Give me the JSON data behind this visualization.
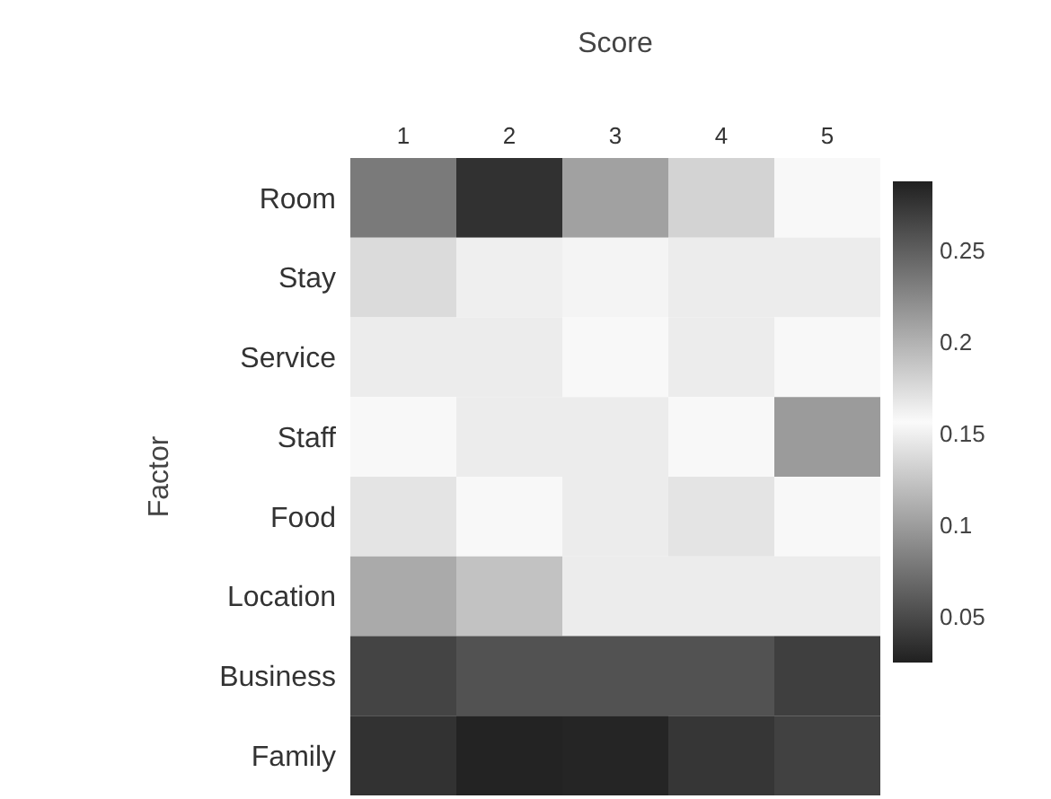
{
  "chart_data": {
    "type": "heatmap",
    "xlabel": "Score",
    "ylabel": "Factor",
    "categories": [
      "1",
      "2",
      "3",
      "4",
      "5"
    ],
    "y_categories": [
      "Room",
      "Stay",
      "Service",
      "Staff",
      "Food",
      "Location",
      "Business",
      "Family"
    ],
    "cells": [
      [
        0.234,
        0.278,
        0.21,
        0.18,
        0.155
      ],
      [
        0.175,
        0.15,
        0.153,
        0.165,
        0.165
      ],
      [
        0.165,
        0.165,
        0.155,
        0.165,
        0.155
      ],
      [
        0.155,
        0.165,
        0.165,
        0.155,
        0.214
      ],
      [
        0.17,
        0.155,
        0.165,
        0.17,
        0.155
      ],
      [
        0.205,
        0.19,
        0.165,
        0.165,
        0.165
      ],
      [
        0.047,
        0.055,
        0.055,
        0.055,
        0.044
      ],
      [
        0.036,
        0.027,
        0.028,
        0.038,
        0.045
      ]
    ],
    "clim": [
      0.025,
      0.288
    ],
    "cticks": [
      0.05,
      0.1,
      0.15,
      0.2,
      0.25
    ]
  }
}
